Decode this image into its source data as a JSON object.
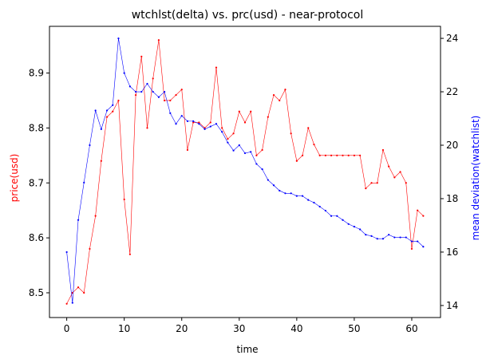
{
  "chart_data": {
    "type": "line",
    "title": "wtchlst(delta) vs. prc(usd) - near-protocol",
    "xlabel": "time",
    "ylabel_left": "price(usd)",
    "ylabel_right": "mean deviation(watchlist)",
    "xlim": [
      -3,
      65
    ],
    "ylim_left": [
      8.455,
      8.985
    ],
    "ylim_right": [
      13.55,
      24.45
    ],
    "x_ticks": [
      0,
      10,
      20,
      30,
      40,
      50,
      60
    ],
    "y_left_ticks": [
      8.5,
      8.6,
      8.7,
      8.8,
      8.9
    ],
    "y_right_ticks": [
      14,
      16,
      18,
      20,
      22,
      24
    ],
    "grid": false,
    "x": [
      0,
      1,
      2,
      3,
      4,
      5,
      6,
      7,
      8,
      9,
      10,
      11,
      12,
      13,
      14,
      15,
      16,
      17,
      18,
      19,
      20,
      21,
      22,
      23,
      24,
      25,
      26,
      27,
      28,
      29,
      30,
      31,
      32,
      33,
      34,
      35,
      36,
      37,
      38,
      39,
      40,
      41,
      42,
      43,
      44,
      45,
      46,
      47,
      48,
      49,
      50,
      51,
      52,
      53,
      54,
      55,
      56,
      57,
      58,
      59,
      60,
      61,
      62
    ],
    "series": [
      {
        "name": "price(usd)",
        "axis": "left",
        "color": "#ff0000",
        "values": [
          8.48,
          8.5,
          8.51,
          8.5,
          8.58,
          8.64,
          8.74,
          8.82,
          8.83,
          8.85,
          8.67,
          8.57,
          8.86,
          8.93,
          8.8,
          8.89,
          8.96,
          8.85,
          8.85,
          8.86,
          8.87,
          8.76,
          8.81,
          8.81,
          8.8,
          8.81,
          8.91,
          8.8,
          8.78,
          8.79,
          8.83,
          8.81,
          8.83,
          8.75,
          8.76,
          8.82,
          8.86,
          8.85,
          8.87,
          8.79,
          8.74,
          8.75,
          8.8,
          8.77,
          8.75,
          8.75,
          8.75,
          8.75,
          8.75,
          8.75,
          8.75,
          8.75,
          8.69,
          8.7,
          8.7,
          8.76,
          8.73,
          8.71,
          8.72,
          8.7,
          8.58,
          8.65,
          8.64
        ]
      },
      {
        "name": "mean deviation(watchlist)",
        "axis": "right",
        "color": "#0000ff",
        "values": [
          16.0,
          14.1,
          17.2,
          18.6,
          20.0,
          21.3,
          20.6,
          21.3,
          21.5,
          24.0,
          22.7,
          22.2,
          22.0,
          22.0,
          22.3,
          22.0,
          21.8,
          22.0,
          21.2,
          20.8,
          21.1,
          20.9,
          20.9,
          20.8,
          20.6,
          20.7,
          20.8,
          20.5,
          20.1,
          19.8,
          20.0,
          19.7,
          19.75,
          19.3,
          19.1,
          18.7,
          18.5,
          18.3,
          18.2,
          18.2,
          18.1,
          18.1,
          17.95,
          17.85,
          17.7,
          17.55,
          17.35,
          17.35,
          17.2,
          17.05,
          16.95,
          16.85,
          16.65,
          16.6,
          16.5,
          16.5,
          16.65,
          16.55,
          16.55,
          16.55,
          16.4,
          16.4,
          16.2
        ]
      }
    ]
  }
}
